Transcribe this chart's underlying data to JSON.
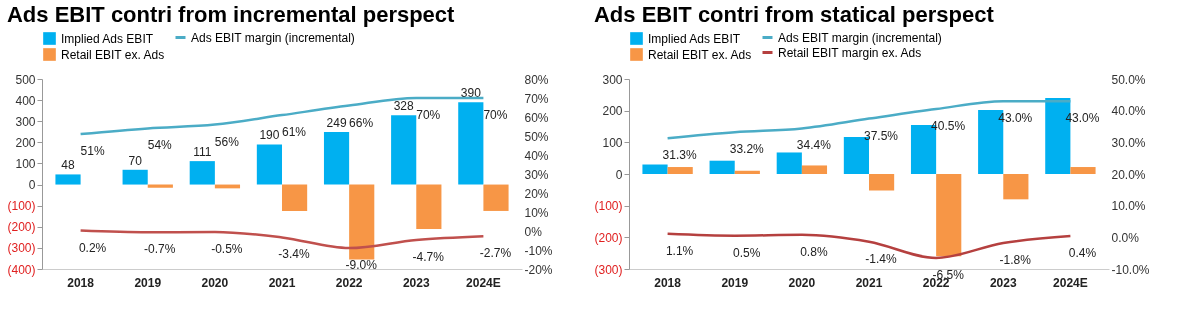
{
  "chart_data": [
    {
      "type": "bar",
      "title": "Ads EBIT contri from incremental perspect",
      "categories": [
        "2018",
        "2019",
        "2020",
        "2021",
        "2022",
        "2023",
        "2024E"
      ],
      "legend": "top",
      "grid": false,
      "ylim": [
        -400,
        500
      ],
      "yticks": [
        {
          "value": -400,
          "label": "(400)"
        },
        {
          "value": -300,
          "label": "(300)"
        },
        {
          "value": -200,
          "label": "(200)"
        },
        {
          "value": -100,
          "label": "(100)"
        },
        0,
        100,
        200,
        300,
        400,
        500
      ],
      "y2lim": [
        -20,
        80
      ],
      "y2ticks": [
        {
          "value": -20,
          "label": "-20%"
        },
        {
          "value": -10,
          "label": "-10%"
        },
        {
          "value": 0,
          "label": "0%"
        },
        {
          "value": 10,
          "label": "10%"
        },
        {
          "value": 20,
          "label": "20%"
        },
        {
          "value": 30,
          "label": "30%"
        },
        {
          "value": 40,
          "label": "40%"
        },
        {
          "value": 50,
          "label": "50%"
        },
        {
          "value": 60,
          "label": "60%"
        },
        {
          "value": 70,
          "label": "70%"
        },
        {
          "value": 80,
          "label": "80%"
        }
      ],
      "series": [
        {
          "name": "Implied Ads EBIT",
          "color": "#00b0f0",
          "values": [
            48,
            70,
            111,
            190,
            249,
            328,
            390
          ],
          "value_labels": [
            "48",
            "70",
            "111",
            "190",
            "249",
            "328",
            "390"
          ]
        },
        {
          "name": "Retail EBIT ex. Ads",
          "color": "#f79646",
          "values": [
            null,
            -15,
            -18,
            -125,
            -355,
            -210,
            -125
          ]
        },
        {
          "name": "Ads EBIT margin (incremental)",
          "type": "line",
          "axis": "y2",
          "color": "#4bacc6",
          "values": [
            51,
            54,
            56,
            61,
            66,
            70,
            70
          ],
          "value_labels": [
            "51%",
            "54%",
            "56%",
            "61%",
            "66%",
            "70%",
            "70%"
          ]
        },
        {
          "type": "line",
          "axis": "y2",
          "color": "#c0504d",
          "values": [
            0.2,
            -0.7,
            -0.5,
            -3.4,
            -9.0,
            -4.7,
            -2.7
          ],
          "value_labels": [
            "0.2%",
            "-0.7%",
            "-0.5%",
            "-3.4%",
            "-9.0%",
            "-4.7%",
            "-2.7%"
          ]
        }
      ]
    },
    {
      "type": "bar",
      "title": "Ads EBIT contri from statical perspect",
      "categories": [
        "2018",
        "2019",
        "2020",
        "2021",
        "2022",
        "2023",
        "2024E"
      ],
      "legend": "top",
      "grid": false,
      "ylim": [
        -300,
        300
      ],
      "yticks": [
        {
          "value": -300,
          "label": "(300)"
        },
        {
          "value": -200,
          "label": "(200)"
        },
        {
          "value": -100,
          "label": "(100)"
        },
        0,
        100,
        200,
        300
      ],
      "y2lim": [
        -10,
        50
      ],
      "y2ticks": [
        {
          "value": -10,
          "label": "-10.0%"
        },
        {
          "value": 0,
          "label": "0.0%"
        },
        {
          "value": 10,
          "label": "10.0%"
        },
        {
          "value": 20,
          "label": "20.0%"
        },
        {
          "value": 30,
          "label": "30.0%"
        },
        {
          "value": 40,
          "label": "40.0%"
        },
        {
          "value": 50,
          "label": "50.0%"
        }
      ],
      "series": [
        {
          "name": "Implied Ads EBIT",
          "color": "#00b0f0",
          "values": [
            30,
            42,
            68,
            117,
            155,
            202,
            240
          ]
        },
        {
          "name": "Retail EBIT ex. Ads",
          "color": "#f79646",
          "values": [
            22,
            10,
            27,
            -52,
            -260,
            -80,
            22
          ]
        },
        {
          "name": "Ads EBIT margin (incremental)",
          "type": "line",
          "axis": "y2",
          "color": "#4bacc6",
          "values": [
            31.3,
            33.2,
            34.4,
            37.5,
            40.5,
            43.0,
            43.0
          ],
          "value_labels": [
            "31.3%",
            "33.2%",
            "34.4%",
            "37.5%",
            "40.5%",
            "43.0%",
            "43.0%"
          ]
        },
        {
          "name": "Retail EBIT margin ex. Ads",
          "type": "line",
          "axis": "y2",
          "color": "#b5403f",
          "values": [
            1.1,
            0.5,
            0.8,
            -1.4,
            -6.5,
            -1.8,
            0.4
          ],
          "value_labels": [
            "1.1%",
            "0.5%",
            "0.8%",
            "-1.4%",
            "-6.5%",
            "-1.8%",
            "0.4%"
          ]
        }
      ]
    }
  ]
}
